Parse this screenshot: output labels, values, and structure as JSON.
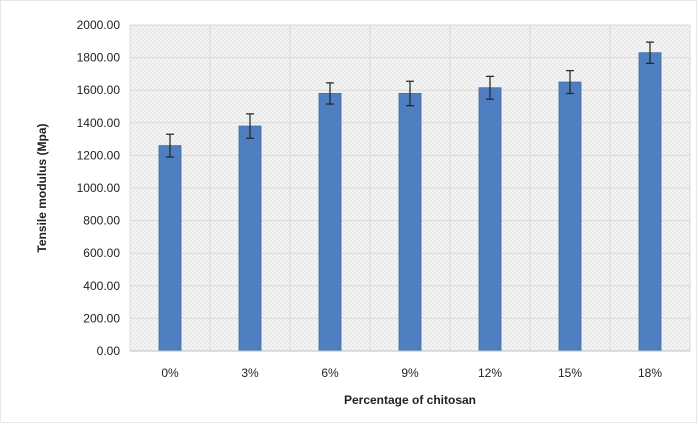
{
  "chart_data": {
    "type": "bar",
    "title": "",
    "xlabel": "Percentage of chitosan",
    "ylabel": "Tensile modulus (Mpa)",
    "categories": [
      "0%",
      "3%",
      "6%",
      "9%",
      "12%",
      "15%",
      "18%"
    ],
    "values": [
      1260,
      1380,
      1580,
      1580,
      1615,
      1650,
      1830
    ],
    "error": [
      70,
      75,
      65,
      75,
      70,
      70,
      65
    ],
    "ylim": [
      0,
      2000
    ],
    "yticks": [
      "0.00",
      "200.00",
      "400.00",
      "600.00",
      "800.00",
      "1000.00",
      "1200.00",
      "1400.00",
      "1600.00",
      "1800.00",
      "2000.00"
    ],
    "grid": true,
    "legend": "none",
    "colors": {
      "bar": "#4f7fc0",
      "bar_edge": "#3b68a6",
      "grid": "#d9d9d9",
      "plot_bg": "#f2f2f2",
      "error_bar": "#222222"
    }
  }
}
